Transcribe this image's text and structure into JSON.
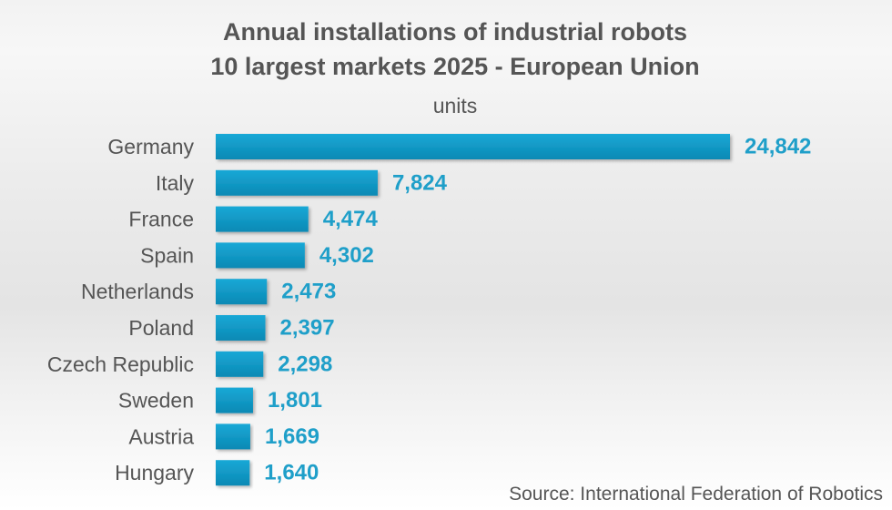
{
  "chart_data": {
    "type": "bar",
    "orientation": "horizontal",
    "title": "Annual installations of industrial robots",
    "subtitle": "10 largest markets 2025 - European Union",
    "unit": "units",
    "categories": [
      "Germany",
      "Italy",
      "France",
      "Spain",
      "Netherlands",
      "Poland",
      "Czech Republic",
      "Sweden",
      "Austria",
      "Hungary"
    ],
    "values": [
      24842,
      7824,
      4474,
      4302,
      2473,
      2397,
      2298,
      1801,
      1669,
      1640
    ],
    "value_labels": [
      "24,842",
      "7,824",
      "4,474",
      "4,302",
      "2,473",
      "2,397",
      "2,298",
      "1,801",
      "1,669",
      "1,640"
    ],
    "xlim": [
      0,
      24842
    ],
    "grid": false,
    "legend": "none",
    "bar_color": "#0a97c4",
    "label_color": "#1f9fc9",
    "category_label_color": "#555555"
  },
  "source": "Source: International Federation of Robotics"
}
